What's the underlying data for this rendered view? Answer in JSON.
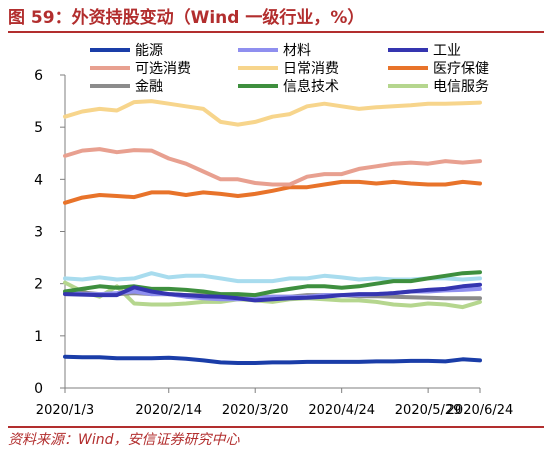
{
  "title": "图 59：外资持股变动（Wind 一级行业，%）",
  "source": "资料来源：Wind，安信证券研究中心",
  "chart_data": {
    "type": "line",
    "title": "外资持股变动（Wind 一级行业，%）",
    "xlabel": "",
    "ylabel": "",
    "ylim": [
      0,
      6
    ],
    "yticks": [
      0,
      1,
      2,
      3,
      4,
      5,
      6
    ],
    "x_start": "2020/1/3",
    "x_end": "2020/6/24",
    "xticks": [
      "2020/1/3",
      "2020/2/14",
      "2020/3/20",
      "2020/4/24",
      "2020/5/29",
      "2020/6/24"
    ],
    "grid": false,
    "legend_position": "top",
    "x": [
      "2020/1/3",
      "2020/1/10",
      "2020/1/17",
      "2020/1/23",
      "2020/2/7",
      "2020/2/14",
      "2020/2/21",
      "2020/2/28",
      "2020/3/6",
      "2020/3/13",
      "2020/3/20",
      "2020/3/27",
      "2020/4/3",
      "2020/4/10",
      "2020/4/17",
      "2020/4/24",
      "2020/4/30",
      "2020/5/8",
      "2020/5/15",
      "2020/5/22",
      "2020/5/29",
      "2020/6/5",
      "2020/6/12",
      "2020/6/19",
      "2020/6/24"
    ],
    "series": [
      {
        "name": "能源",
        "color": "#1a3da8",
        "values": [
          0.6,
          0.59,
          0.59,
          0.57,
          0.57,
          0.57,
          0.58,
          0.56,
          0.53,
          0.49,
          0.48,
          0.48,
          0.49,
          0.49,
          0.5,
          0.5,
          0.5,
          0.5,
          0.51,
          0.51,
          0.52,
          0.52,
          0.51,
          0.55,
          0.53
        ]
      },
      {
        "name": "材料",
        "color": "#8f8fef",
        "values": [
          1.85,
          1.8,
          1.8,
          1.82,
          1.85,
          1.8,
          1.8,
          1.75,
          1.72,
          1.7,
          1.7,
          1.72,
          1.75,
          1.75,
          1.75,
          1.78,
          1.78,
          1.78,
          1.8,
          1.82,
          1.85,
          1.85,
          1.87,
          1.88,
          1.9
        ]
      },
      {
        "name": "工业",
        "color": "#3535b0",
        "values": [
          1.8,
          1.79,
          1.78,
          1.78,
          1.93,
          1.85,
          1.8,
          1.78,
          1.76,
          1.75,
          1.72,
          1.68,
          1.7,
          1.72,
          1.73,
          1.75,
          1.78,
          1.8,
          1.8,
          1.82,
          1.85,
          1.88,
          1.9,
          1.95,
          1.98
        ]
      },
      {
        "name": "可选消费",
        "color": "#e8a090",
        "values": [
          4.45,
          4.55,
          4.58,
          4.52,
          4.56,
          4.55,
          4.4,
          4.3,
          4.15,
          4.0,
          4.0,
          3.93,
          3.9,
          3.9,
          4.05,
          4.1,
          4.1,
          4.2,
          4.25,
          4.3,
          4.32,
          4.3,
          4.35,
          4.32,
          4.35
        ]
      },
      {
        "name": "日常消费",
        "color": "#f7d58c",
        "values": [
          5.2,
          5.3,
          5.35,
          5.32,
          5.48,
          5.5,
          5.45,
          5.4,
          5.35,
          5.1,
          5.05,
          5.1,
          5.2,
          5.25,
          5.4,
          5.45,
          5.4,
          5.35,
          5.38,
          5.4,
          5.42,
          5.45,
          5.45,
          5.46,
          5.47
        ]
      },
      {
        "name": "医疗保健",
        "color": "#e8732a",
        "values": [
          3.55,
          3.65,
          3.7,
          3.68,
          3.66,
          3.75,
          3.75,
          3.7,
          3.75,
          3.72,
          3.68,
          3.72,
          3.78,
          3.85,
          3.85,
          3.9,
          3.95,
          3.95,
          3.92,
          3.95,
          3.92,
          3.9,
          3.9,
          3.95,
          3.92
        ]
      },
      {
        "name": "金融",
        "color": "#8c8c8c",
        "values": [
          1.82,
          1.83,
          1.8,
          1.8,
          1.82,
          1.8,
          1.8,
          1.78,
          1.78,
          1.75,
          1.75,
          1.75,
          1.75,
          1.75,
          1.78,
          1.78,
          1.78,
          1.76,
          1.76,
          1.75,
          1.74,
          1.73,
          1.72,
          1.72,
          1.72
        ]
      },
      {
        "name": "信息技术",
        "color": "#3e8f3e",
        "values": [
          1.85,
          1.9,
          1.95,
          1.92,
          1.95,
          1.9,
          1.9,
          1.88,
          1.85,
          1.8,
          1.8,
          1.78,
          1.85,
          1.9,
          1.95,
          1.95,
          1.92,
          1.95,
          2.0,
          2.05,
          2.05,
          2.1,
          2.15,
          2.2,
          2.22
        ]
      },
      {
        "name": "电信服务",
        "color": "#b5d68e",
        "values": [
          2.02,
          1.85,
          1.75,
          1.95,
          1.62,
          1.6,
          1.6,
          1.62,
          1.65,
          1.65,
          1.7,
          1.68,
          1.65,
          1.7,
          1.72,
          1.7,
          1.68,
          1.68,
          1.65,
          1.6,
          1.58,
          1.62,
          1.6,
          1.55,
          1.65
        ]
      },
      {
        "name": "",
        "color": "#a8dcee",
        "values": [
          2.1,
          2.08,
          2.12,
          2.08,
          2.1,
          2.2,
          2.12,
          2.15,
          2.15,
          2.1,
          2.05,
          2.05,
          2.05,
          2.1,
          2.1,
          2.15,
          2.12,
          2.08,
          2.1,
          2.08,
          2.08,
          2.1,
          2.1,
          2.08,
          2.1
        ]
      }
    ]
  }
}
